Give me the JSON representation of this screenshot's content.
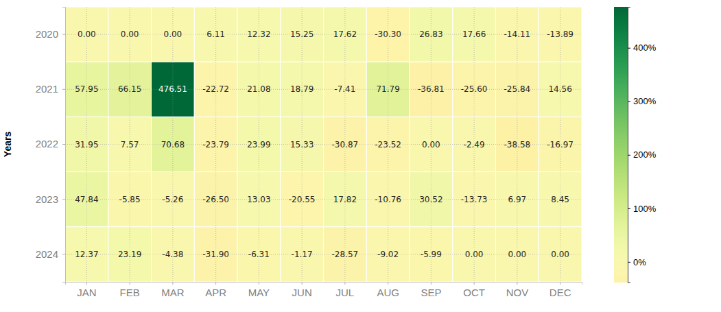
{
  "chart_data": {
    "type": "heatmap",
    "categories": [
      "JAN",
      "FEB",
      "MAR",
      "APR",
      "MAY",
      "JUN",
      "JUL",
      "AUG",
      "SEP",
      "OCT",
      "NOV",
      "DEC"
    ],
    "y_categories": [
      "2020",
      "2021",
      "2022",
      "2023",
      "2024"
    ],
    "ylabel": "Years",
    "values": [
      [
        0,
        0,
        0,
        6.11,
        12.32,
        15.25,
        17.62,
        -30.3,
        26.83,
        17.66,
        -14.11,
        -13.89
      ],
      [
        57.95,
        66.15,
        476.51,
        -22.72,
        21.08,
        18.79,
        -7.41,
        71.79,
        -36.81,
        -25.6,
        -25.84,
        14.56
      ],
      [
        31.95,
        7.57,
        70.68,
        -23.79,
        23.99,
        15.33,
        -30.87,
        -23.52,
        0,
        -2.49,
        -38.58,
        -16.97
      ],
      [
        47.84,
        -5.85,
        -5.26,
        -26.5,
        13.03,
        -20.55,
        17.82,
        -10.76,
        30.52,
        -13.73,
        6.97,
        8.45
      ],
      [
        12.37,
        23.19,
        -4.38,
        -31.9,
        -6.31,
        -1.17,
        -28.57,
        -9.02,
        -5.99,
        0,
        0,
        0
      ]
    ],
    "value_labels": [
      [
        "0.00",
        "0.00",
        "0.00",
        "6.11",
        "12.32",
        "15.25",
        "17.62",
        "-30.30",
        "26.83",
        "17.66",
        "-14.11",
        "-13.89"
      ],
      [
        "57.95",
        "66.15",
        "476.51",
        "-22.72",
        "21.08",
        "18.79",
        "-7.41",
        "71.79",
        "-36.81",
        "-25.60",
        "-25.84",
        "14.56"
      ],
      [
        "31.95",
        "7.57",
        "70.68",
        "-23.79",
        "23.99",
        "15.33",
        "-30.87",
        "-23.52",
        "0.00",
        "-2.49",
        "-38.58",
        "-16.97"
      ],
      [
        "47.84",
        "-5.85",
        "-5.26",
        "-26.50",
        "13.03",
        "-20.55",
        "17.82",
        "-10.76",
        "30.52",
        "-13.73",
        "6.97",
        "8.45"
      ],
      [
        "12.37",
        "23.19",
        "-4.38",
        "-31.90",
        "-6.31",
        "-1.17",
        "-28.57",
        "-9.02",
        "-5.99",
        "0.00",
        "0.00",
        "0.00"
      ]
    ],
    "data_labels": true,
    "grid": true,
    "color": "RdYlGn",
    "colorbar": {
      "range": [
        -38.58,
        476.51
      ],
      "ticks": [
        {
          "value": 0,
          "label": "0%"
        },
        {
          "value": 100,
          "label": "100%"
        },
        {
          "value": 200,
          "label": "200%"
        },
        {
          "value": 300,
          "label": "300%"
        },
        {
          "value": 400,
          "label": "400%"
        }
      ]
    }
  }
}
